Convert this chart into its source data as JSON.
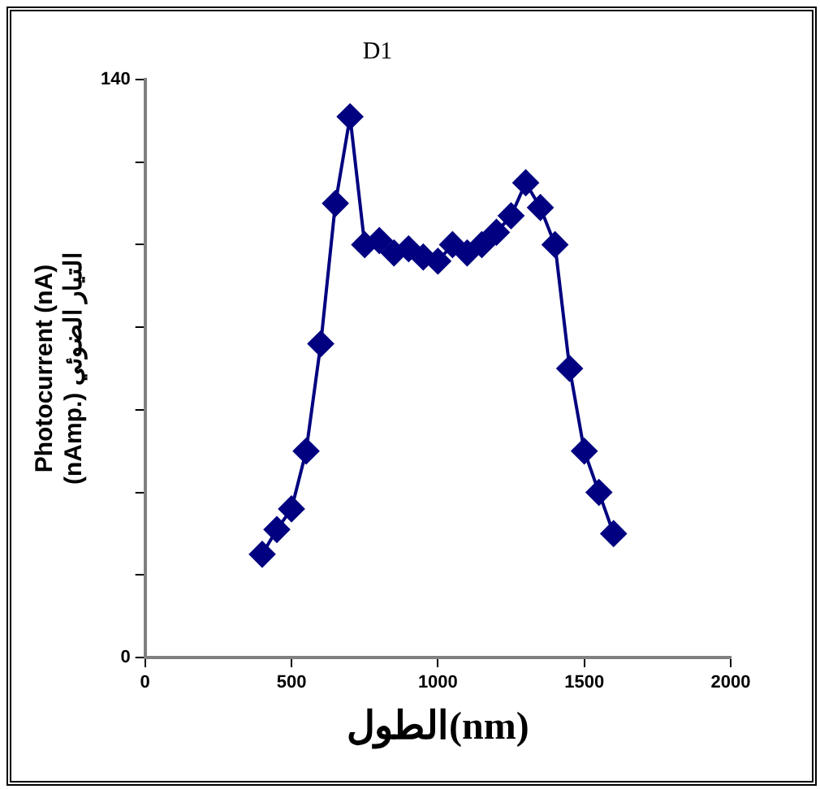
{
  "chart_data": {
    "type": "line",
    "title": "D1",
    "xlabel": "الطول(nm)",
    "ylabel": [
      "Photocurrent (nA)",
      "(nAmp.) التيار الضوئي"
    ],
    "x": [
      400,
      450,
      500,
      550,
      600,
      650,
      700,
      750,
      800,
      850,
      900,
      950,
      1000,
      1050,
      1100,
      1150,
      1200,
      1250,
      1300,
      1350,
      1400,
      1450,
      1500,
      1550,
      1600
    ],
    "series": [
      {
        "color": "#000080",
        "values": [
          25,
          31,
          36,
          50,
          76,
          110,
          131,
          100,
          101,
          98,
          99,
          97,
          96,
          100,
          98,
          100,
          103,
          107,
          115,
          109,
          100,
          70,
          50,
          40,
          30
        ]
      }
    ],
    "xlim": [
      0,
      2000
    ],
    "xticks": [
      0,
      500,
      1000,
      1500,
      2000
    ],
    "ylim": [
      0,
      140
    ],
    "yticks": [
      0,
      {
        "value": 20,
        "label": null
      },
      {
        "value": 40,
        "label": null
      },
      {
        "value": 60,
        "label": null
      },
      {
        "value": 80,
        "label": null
      },
      {
        "value": 100,
        "label": null
      },
      {
        "value": 120,
        "label": null
      },
      140
    ],
    "marker": "diamond",
    "line_style": "solid",
    "grid": false,
    "legend": false
  }
}
